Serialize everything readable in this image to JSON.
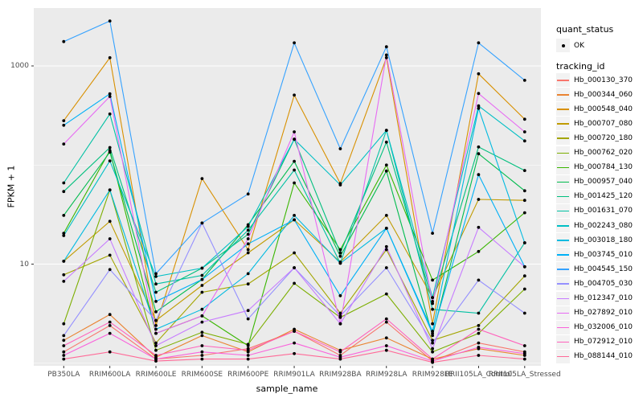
{
  "figure": {
    "xlabel": "sample_name",
    "ylabel": "FPKM + 1",
    "panel_bg": "#ebebeb",
    "grid_color": "#ffffff",
    "tick_color": "#333333",
    "point_color": "#000000"
  },
  "legend": {
    "quant_title": "quant_status",
    "quant_items": [
      {
        "label": "OK",
        "marker": "point-icon"
      }
    ],
    "tracking_title": "tracking_id"
  },
  "chart_data": {
    "type": "line",
    "x_axis_label": "sample_name",
    "y_axis_label": "FPKM + 1",
    "y_scale": "log10",
    "y_ticks": [
      {
        "label": "10",
        "value": 10
      },
      {
        "label": "1000",
        "value": 1000
      }
    ],
    "grid_major_values": [
      10,
      1000
    ],
    "grid_minor_values": [
      1,
      100
    ],
    "ylim": [
      0.93,
      3800
    ],
    "legend_position": "right",
    "categories": [
      "PB350LA",
      "RRIM600LA",
      "RRIM600LE",
      "RRIM600SE",
      "RRIM600PE",
      "RRIM901LA",
      "RRIM928BA",
      "RRIM928LA",
      "RRIM928LE",
      "RRII105LA_Control",
      "RRII105LA_Stressed"
    ],
    "series": [
      {
        "name": "Hb_000130_370",
        "color": "#F8766D",
        "values": [
          1.3,
          2.4,
          1.1,
          1.2,
          1.4,
          2.1,
          1.2,
          2.6,
          1.05,
          1.6,
          1.3
        ]
      },
      {
        "name": "Hb_000344_060",
        "color": "#EA8331",
        "values": [
          1.7,
          3.1,
          1.15,
          1.9,
          1.3,
          2.2,
          1.35,
          1.8,
          1.1,
          1.4,
          1.2
        ]
      },
      {
        "name": "Hb_000548_040",
        "color": "#D89000",
        "values": [
          280,
          1210,
          2.4,
          73,
          14,
          508,
          65,
          1210,
          2.5,
          832,
          290
        ]
      },
      {
        "name": "Hb_000707_080",
        "color": "#C09B00",
        "values": [
          10.7,
          27,
          2.7,
          6.1,
          13,
          28,
          10.5,
          31,
          4.6,
          45,
          44
        ]
      },
      {
        "name": "Hb_000720_180",
        "color": "#A3A500",
        "values": [
          7.8,
          12.3,
          1.6,
          5.2,
          6.3,
          13,
          3.2,
          14,
          1.7,
          2.4,
          7.6
        ]
      },
      {
        "name": "Hb_000762_020",
        "color": "#7CAE00",
        "values": [
          2.5,
          56,
          1.35,
          2.05,
          1.55,
          6.4,
          2.9,
          5.0,
          1.3,
          2.0,
          5.6
        ]
      },
      {
        "name": "Hb_000784_130",
        "color": "#39B600",
        "values": [
          20.5,
          140,
          2.0,
          3.0,
          1.5,
          66,
          14,
          100,
          6.9,
          13.4,
          33
        ]
      },
      {
        "name": "Hb_000957_040",
        "color": "#00BB4E",
        "values": [
          31,
          135,
          3.3,
          7.0,
          25,
          109,
          12,
          87,
          1.9,
          130,
          55
        ]
      },
      {
        "name": "Hb_001425_120",
        "color": "#00BF7D",
        "values": [
          54,
          150,
          5.2,
          9.1,
          20,
          182,
          13,
          170,
          4.2,
          152,
          88
        ]
      },
      {
        "name": "Hb_001631_070",
        "color": "#00C1A3",
        "values": [
          66,
          327,
          6.3,
          7.7,
          22,
          89,
          10.2,
          224,
          3.5,
          3.2,
          16.4
        ]
      },
      {
        "name": "Hb_002243_080",
        "color": "#00BFC4",
        "values": [
          19.4,
          110,
          7.5,
          9.1,
          24,
          182,
          63,
          224,
          4.6,
          395,
          175
        ]
      },
      {
        "name": "Hb_003018_180",
        "color": "#00BAE0",
        "values": [
          10.7,
          56,
          2.2,
          3.5,
          8.0,
          31,
          10.2,
          23,
          2.1,
          373,
          16.4
        ]
      },
      {
        "name": "Hb_003745_010",
        "color": "#00B0F6",
        "values": [
          252,
          523,
          4.2,
          7.0,
          16,
          28,
          4.8,
          23,
          2.0,
          80,
          9.4
        ]
      },
      {
        "name": "Hb_004545_150",
        "color": "#35A2FF",
        "values": [
          1760,
          2840,
          8.0,
          26,
          51,
          1710,
          146,
          1560,
          20.5,
          1710,
          716
        ]
      },
      {
        "name": "Hb_004705_030",
        "color": "#9590FF",
        "values": [
          1.9,
          8.8,
          2.7,
          26,
          2.8,
          9.2,
          3.0,
          9.2,
          1.6,
          6.9,
          3.2
        ]
      },
      {
        "name": "Hb_012347_010",
        "color": "#C77CFF",
        "values": [
          6.7,
          18,
          1.5,
          2.6,
          3.4,
          9.2,
          2.5,
          15,
          1.4,
          23.5,
          9.4
        ]
      },
      {
        "name": "Hb_027892_010",
        "color": "#E76BF3",
        "values": [
          163,
          492,
          2.0,
          3.0,
          18,
          216,
          2.5,
          1290,
          4.0,
          527,
          216
        ]
      },
      {
        "name": "Hb_032006_010",
        "color": "#FA62DB",
        "values": [
          1.2,
          2.0,
          1.1,
          1.3,
          1.2,
          1.6,
          1.15,
          1.5,
          1.05,
          1.45,
          1.25
        ]
      },
      {
        "name": "Hb_072912_010",
        "color": "#FF62BC",
        "values": [
          1.5,
          2.6,
          1.2,
          1.5,
          1.35,
          2.1,
          1.3,
          2.8,
          1.1,
          2.2,
          1.5
        ]
      },
      {
        "name": "Hb_088144_010",
        "color": "#FF6A98",
        "values": [
          1.1,
          1.3,
          1.05,
          1.1,
          1.1,
          1.25,
          1.1,
          1.35,
          1.02,
          1.2,
          1.1
        ]
      }
    ]
  }
}
